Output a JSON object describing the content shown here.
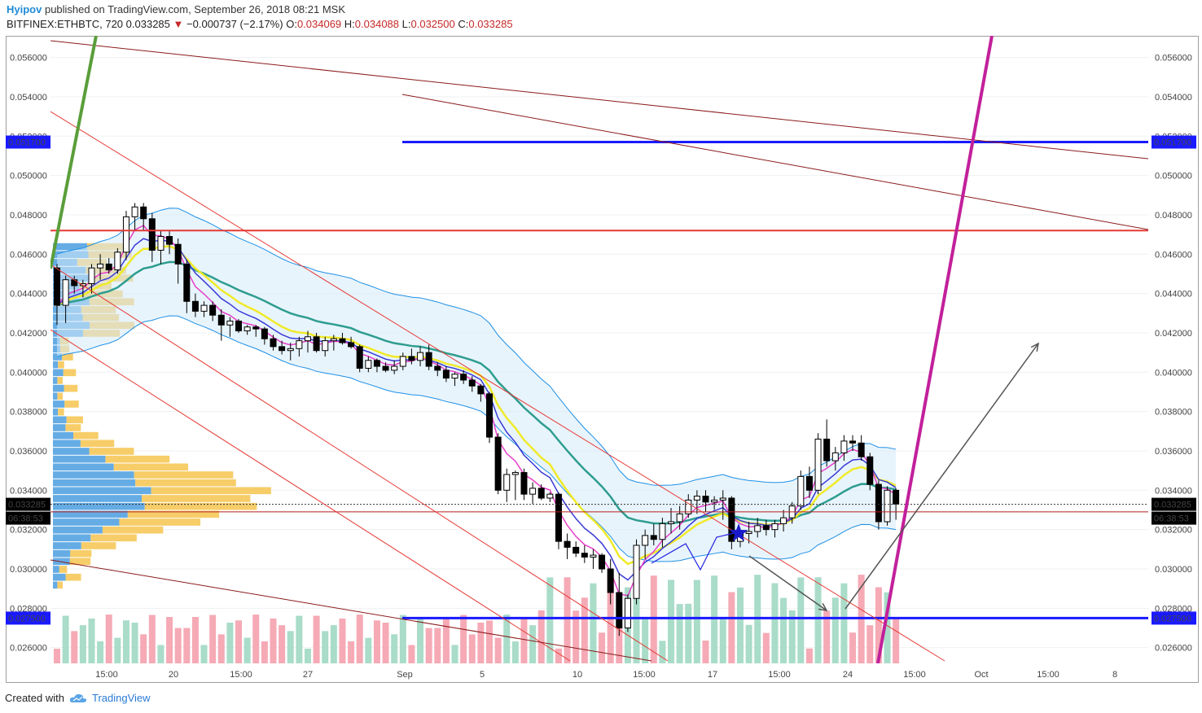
{
  "header": {
    "author": "Hyipov",
    "published_text": "published on TradingView.com, September 26, 2018 08:21 MSK",
    "symbol": "BITFINEX:ETHBTC, 720",
    "last": "0.033285",
    "change_arrow": "▼",
    "change": "−0.000737 (−2.17%)",
    "o_label": "O:",
    "o_value": "0.034069",
    "h_label": "H:",
    "h_value": "0.034088",
    "l_label": "L:",
    "l_value": "0.032500",
    "c_label": "C:",
    "c_value": "0.033285"
  },
  "footer": {
    "created_with": "Created with",
    "brand": "TradingView"
  },
  "colors": {
    "up_candle": "#ffffff",
    "down_candle": "#000000",
    "resistance_line": "#e53935",
    "level_line": "#1a1aff",
    "trend_line": "#8b1a1a",
    "projection_line": "#c2209b",
    "green_line": "#5a9e3a",
    "ema_fast": "#e83ec8",
    "ema_mid": "#3a3ad6",
    "ema_yellow": "#f0ea2a",
    "ema_slow": "#2e9d8f",
    "bands": "#1e90e6",
    "volume_up": "#a9dcc9",
    "volume_down": "#f5aab5",
    "vp_blue": "#4a9ee0",
    "vp_yellow": "#f6c44f"
  },
  "chart_data": {
    "type": "candlestick",
    "symbol": "BITFINEX:ETHBTC",
    "interval": "720",
    "ylim": [
      0.0252,
      0.0571
    ],
    "y_ticks": [
      "0.056000",
      "0.054000",
      "0.052000",
      "0.050000",
      "0.048000",
      "0.046000",
      "0.044000",
      "0.042000",
      "0.040000",
      "0.038000",
      "0.036000",
      "0.034000",
      "0.032000",
      "0.030000",
      "0.028000",
      "0.026000"
    ],
    "x_ticks": [
      "15:00",
      "20",
      "15:00",
      "27",
      "Sep",
      "5",
      "10",
      "15:00",
      "17",
      "15:00",
      "24",
      "15:00",
      "Oct",
      "15:00",
      "8"
    ],
    "price_labels": {
      "upper_level": "0.051700",
      "lower_level": "0.027500",
      "last_price": "0.033285",
      "countdown": "06:38:53"
    },
    "levels": [
      {
        "name": "resistance",
        "value": 0.0517
      },
      {
        "name": "support",
        "value": 0.0275
      },
      {
        "name": "horizontal",
        "value": 0.0472
      },
      {
        "name": "horizontal",
        "value": 0.0329
      }
    ],
    "candles": [
      [
        0.0453,
        0.0455,
        0.0424,
        0.0434
      ],
      [
        0.0434,
        0.0449,
        0.0425,
        0.0447
      ],
      [
        0.0447,
        0.0449,
        0.044,
        0.0444
      ],
      [
        0.0444,
        0.0447,
        0.0438,
        0.0445
      ],
      [
        0.0445,
        0.0455,
        0.044,
        0.0453
      ],
      [
        0.0453,
        0.046,
        0.0447,
        0.0455
      ],
      [
        0.0455,
        0.0458,
        0.045,
        0.0452
      ],
      [
        0.0452,
        0.0463,
        0.045,
        0.0461
      ],
      [
        0.0461,
        0.0482,
        0.0457,
        0.0479
      ],
      [
        0.0479,
        0.0486,
        0.0472,
        0.0484
      ],
      [
        0.0484,
        0.0486,
        0.0472,
        0.0478
      ],
      [
        0.0478,
        0.0481,
        0.0456,
        0.0462
      ],
      [
        0.0462,
        0.0472,
        0.0455,
        0.0469
      ],
      [
        0.0469,
        0.0472,
        0.046,
        0.0465
      ],
      [
        0.0465,
        0.0468,
        0.0445,
        0.0455
      ],
      [
        0.0455,
        0.0457,
        0.043,
        0.0436
      ],
      [
        0.0436,
        0.044,
        0.0428,
        0.0431
      ],
      [
        0.0431,
        0.0436,
        0.0428,
        0.0434
      ],
      [
        0.0434,
        0.0436,
        0.0426,
        0.0429
      ],
      [
        0.0429,
        0.0432,
        0.0416,
        0.0424
      ],
      [
        0.0424,
        0.0428,
        0.0418,
        0.0426
      ],
      [
        0.0426,
        0.0427,
        0.042,
        0.0421
      ],
      [
        0.0421,
        0.0424,
        0.0419,
        0.0423
      ],
      [
        0.0423,
        0.0424,
        0.0418,
        0.0422
      ],
      [
        0.0422,
        0.0423,
        0.0414,
        0.0417
      ],
      [
        0.0417,
        0.0419,
        0.0411,
        0.0413
      ],
      [
        0.0413,
        0.0416,
        0.0409,
        0.0411
      ],
      [
        0.0411,
        0.0415,
        0.0406,
        0.0412
      ],
      [
        0.0412,
        0.0418,
        0.0408,
        0.0416
      ],
      [
        0.0416,
        0.0421,
        0.041,
        0.0418
      ],
      [
        0.0418,
        0.042,
        0.041,
        0.0411
      ],
      [
        0.0411,
        0.0418,
        0.0408,
        0.0416
      ],
      [
        0.0416,
        0.0419,
        0.0411,
        0.0417
      ],
      [
        0.0417,
        0.042,
        0.0414,
        0.0415
      ],
      [
        0.0415,
        0.0418,
        0.0412,
        0.0413
      ],
      [
        0.0413,
        0.0414,
        0.04,
        0.0402
      ],
      [
        0.0402,
        0.0408,
        0.04,
        0.0406
      ],
      [
        0.0406,
        0.0407,
        0.04,
        0.0403
      ],
      [
        0.0403,
        0.0405,
        0.04,
        0.0401
      ],
      [
        0.0401,
        0.0406,
        0.0399,
        0.0403
      ],
      [
        0.0403,
        0.041,
        0.0401,
        0.0408
      ],
      [
        0.0408,
        0.0412,
        0.0404,
        0.0406
      ],
      [
        0.0406,
        0.0413,
        0.0403,
        0.041
      ],
      [
        0.041,
        0.0414,
        0.0401,
        0.0403
      ],
      [
        0.0403,
        0.0405,
        0.0398,
        0.0401
      ],
      [
        0.0401,
        0.0403,
        0.0395,
        0.0397
      ],
      [
        0.0397,
        0.04,
        0.0393,
        0.0399
      ],
      [
        0.0399,
        0.0401,
        0.0394,
        0.0396
      ],
      [
        0.0396,
        0.0398,
        0.039,
        0.0393
      ],
      [
        0.0393,
        0.0394,
        0.0385,
        0.0389
      ],
      [
        0.0389,
        0.039,
        0.0364,
        0.0367
      ],
      [
        0.0367,
        0.0369,
        0.0338,
        0.034
      ],
      [
        0.034,
        0.0351,
        0.0334,
        0.0348
      ],
      [
        0.0348,
        0.035,
        0.0335,
        0.0349
      ],
      [
        0.0349,
        0.0351,
        0.0335,
        0.0338
      ],
      [
        0.0338,
        0.0344,
        0.0333,
        0.0341
      ],
      [
        0.0341,
        0.0343,
        0.0335,
        0.0336
      ],
      [
        0.0336,
        0.0339,
        0.0334,
        0.0338
      ],
      [
        0.0338,
        0.0339,
        0.031,
        0.0314
      ],
      [
        0.0314,
        0.0318,
        0.0305,
        0.0311
      ],
      [
        0.0311,
        0.0314,
        0.0306,
        0.0308
      ],
      [
        0.0308,
        0.0312,
        0.0303,
        0.0306
      ],
      [
        0.0306,
        0.031,
        0.03,
        0.0307
      ],
      [
        0.0307,
        0.0308,
        0.0298,
        0.03
      ],
      [
        0.03,
        0.0305,
        0.0282,
        0.0288
      ],
      [
        0.0288,
        0.0298,
        0.0266,
        0.027
      ],
      [
        0.027,
        0.0287,
        0.0268,
        0.0285
      ],
      [
        0.0285,
        0.0315,
        0.0282,
        0.0312
      ],
      [
        0.0312,
        0.032,
        0.0305,
        0.0317
      ],
      [
        0.0317,
        0.0323,
        0.0312,
        0.0315
      ],
      [
        0.0315,
        0.0326,
        0.0311,
        0.0323
      ],
      [
        0.0323,
        0.0331,
        0.0318,
        0.0324
      ],
      [
        0.0324,
        0.0332,
        0.032,
        0.0328
      ],
      [
        0.0328,
        0.0338,
        0.0326,
        0.0335
      ],
      [
        0.0335,
        0.034,
        0.0328,
        0.0337
      ],
      [
        0.0337,
        0.034,
        0.0329,
        0.0334
      ],
      [
        0.0334,
        0.0337,
        0.033,
        0.0335
      ],
      [
        0.0335,
        0.034,
        0.0325,
        0.0336
      ],
      [
        0.0336,
        0.0337,
        0.031,
        0.0314
      ],
      [
        0.0314,
        0.0319,
        0.0311,
        0.0318
      ],
      [
        0.0318,
        0.0324,
        0.0313,
        0.0319
      ],
      [
        0.0319,
        0.0326,
        0.0316,
        0.0322
      ],
      [
        0.0322,
        0.0325,
        0.0317,
        0.032
      ],
      [
        0.032,
        0.0325,
        0.0316,
        0.0323
      ],
      [
        0.0323,
        0.033,
        0.0319,
        0.0326
      ],
      [
        0.0326,
        0.0334,
        0.0323,
        0.0332
      ],
      [
        0.0332,
        0.035,
        0.033,
        0.0347
      ],
      [
        0.0347,
        0.0352,
        0.0336,
        0.034
      ],
      [
        0.034,
        0.0369,
        0.0338,
        0.0366
      ],
      [
        0.0366,
        0.0376,
        0.0352,
        0.0355
      ],
      [
        0.0355,
        0.0362,
        0.035,
        0.0359
      ],
      [
        0.0359,
        0.0368,
        0.0355,
        0.0365
      ],
      [
        0.0365,
        0.0368,
        0.036,
        0.0364
      ],
      [
        0.0364,
        0.0368,
        0.0355,
        0.0357
      ],
      [
        0.0357,
        0.0359,
        0.034,
        0.0343
      ],
      [
        0.0343,
        0.0345,
        0.032,
        0.0324
      ],
      [
        0.0324,
        0.0342,
        0.0322,
        0.034
      ],
      [
        0.034,
        0.0341,
        0.0325,
        0.0333
      ]
    ]
  }
}
